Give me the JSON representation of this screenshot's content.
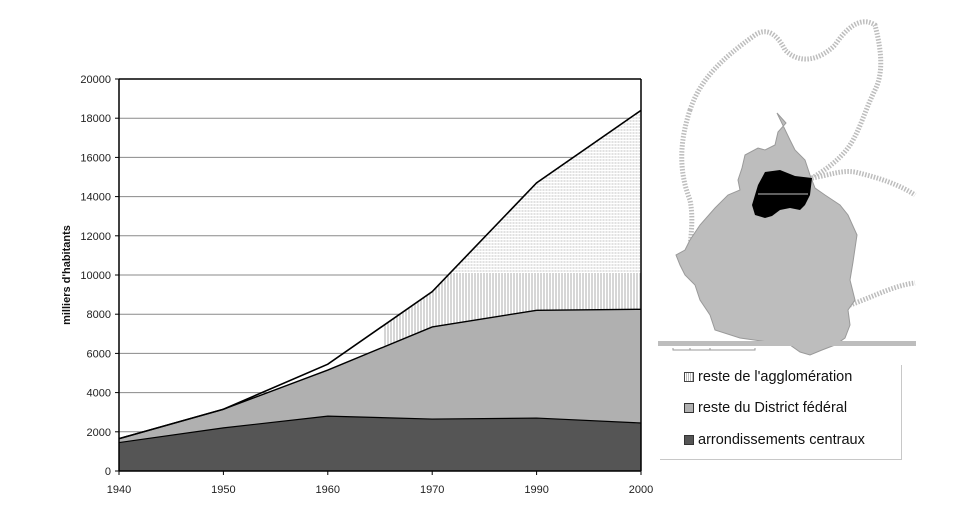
{
  "chart_data": {
    "type": "area",
    "stacked": true,
    "title": "",
    "xlabel": "",
    "ylabel": "milliers d'habitants",
    "categories": [
      "1940",
      "1950",
      "1960",
      "1970",
      "1990",
      "2000"
    ],
    "ylim": [
      0,
      20000
    ],
    "yticks": [
      0,
      2000,
      4000,
      6000,
      8000,
      10000,
      12000,
      14000,
      16000,
      18000,
      20000
    ],
    "grid": "horizontal",
    "legend_position": "right-bottom",
    "series": [
      {
        "name": "arrondissements centraux",
        "values": [
          1450,
          2200,
          2800,
          2650,
          2700,
          2450
        ],
        "color": "#555555",
        "pattern": "solid"
      },
      {
        "name": "reste du District fédéral",
        "values": [
          200,
          950,
          2350,
          4700,
          5500,
          5800
        ],
        "color": "#b0b0b0",
        "pattern": "solid"
      },
      {
        "name": "reste de l'agglomération",
        "values": [
          0,
          0,
          300,
          1800,
          6500,
          10150
        ],
        "color": "#ffffff",
        "pattern": "hatched"
      }
    ],
    "totals": [
      1650,
      3150,
      5450,
      9150,
      14700,
      18400
    ],
    "annotations": [
      "Map inset of Mexico City area: central arrondissements (black), rest of Federal District (grey), agglomeration boundary (dashed)"
    ]
  },
  "legend": {
    "items": [
      {
        "label": "reste de l'agglomération",
        "swatch": "hatched"
      },
      {
        "label": "reste du District fédéral",
        "swatch": "#b0b0b0"
      },
      {
        "label": "arrondissements centraux",
        "swatch": "#555555"
      }
    ]
  },
  "colors": {
    "dark": "#555555",
    "light": "#b0b0b0",
    "map_grey": "#bdbdbd",
    "map_black": "#000000"
  }
}
